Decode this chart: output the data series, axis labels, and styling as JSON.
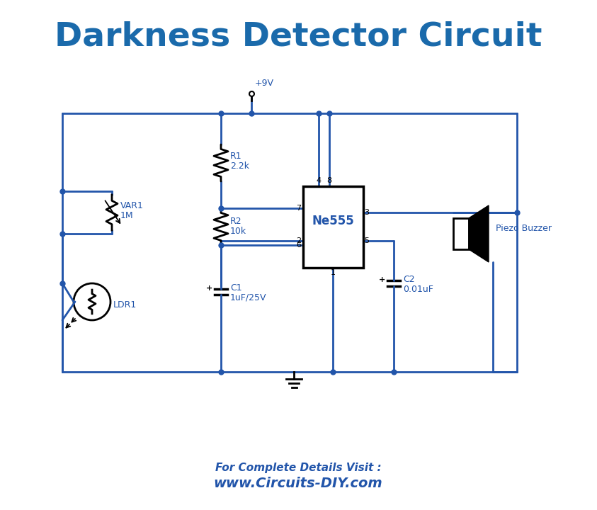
{
  "title": "Darkness Detector Circuit",
  "title_color": "#1a6aab",
  "title_fontsize": 34,
  "title_fontweight": "bold",
  "line_color": "#2255aa",
  "line_width": 2.0,
  "component_color": "black",
  "label_color": "#2255aa",
  "label_fontsize": 9,
  "background_color": "white",
  "footer_line1": "For Complete Details Visit :",
  "footer_line2": "www.Circuits-DIY.com",
  "footer_color": "#2255aa",
  "footer_fontsize1": 11,
  "footer_fontsize2": 14
}
